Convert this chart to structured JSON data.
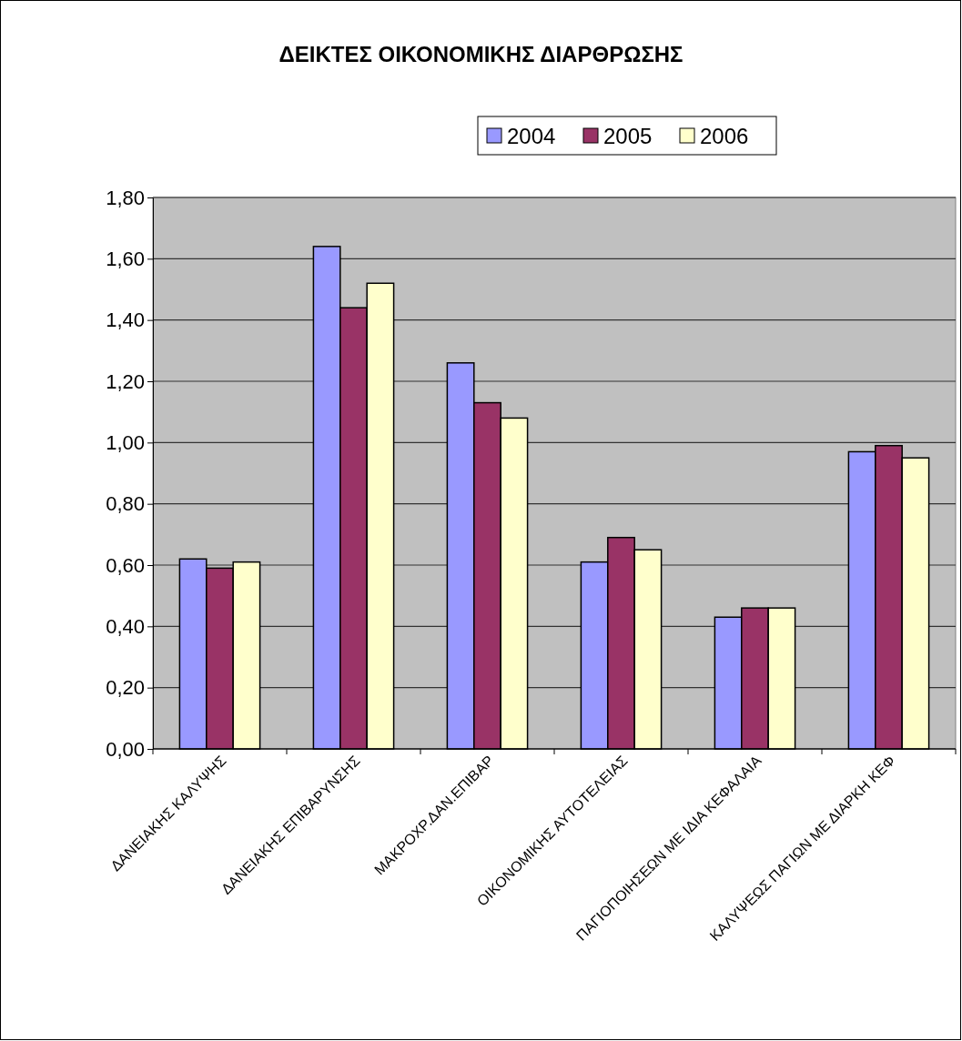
{
  "chart_data": {
    "type": "bar",
    "title": "ΔΕΙΚΤΕΣ ΟΙΚΟΝΟΜΙΚΗΣ ΔΙΑΡΘΡΩΣΗΣ",
    "categories": [
      "ΔΑΝΕΙΑΚΗΣ ΚΑΛΥΨΗΣ",
      "ΔΑΝΕΙΑΚΗΣ ΕΠΙΒΑΡΥΝΣΗΣ",
      "ΜΑΚΡΟΧΡ.ΔΑΝ.ΕΠΙΒΑΡ",
      "ΟΙΚΟΝΟΜΙΚΗΣ ΑΥΤΟΤΕΛΕΙΑΣ",
      "ΠΑΓΙΟΠΟΙΗΣΕΩΝ ΜΕ ΙΔΙΑ ΚΕΦΑΛΑΙΑ",
      "ΚΑΛΥΨΕΩΣ ΠΑΓΙΩΝ ΜΕ ΔΙΑΡΚΗ ΚΕΦ"
    ],
    "series": [
      {
        "name": "2004",
        "color": "#9999ff",
        "values": [
          0.62,
          1.64,
          1.26,
          0.61,
          0.43,
          0.97
        ]
      },
      {
        "name": "2005",
        "color": "#993366",
        "values": [
          0.59,
          1.44,
          1.13,
          0.69,
          0.46,
          0.99
        ]
      },
      {
        "name": "2006",
        "color": "#ffffcc",
        "values": [
          0.61,
          1.52,
          1.08,
          0.65,
          0.46,
          0.95
        ]
      }
    ],
    "ylim": [
      0,
      1.8
    ],
    "yticks": [
      {
        "value": 0,
        "label": "0,00"
      },
      {
        "value": 0.2,
        "label": "0,20"
      },
      {
        "value": 0.4,
        "label": "0,40"
      },
      {
        "value": 0.6,
        "label": "0,60"
      },
      {
        "value": 0.8,
        "label": "0,80"
      },
      {
        "value": 1,
        "label": "1,00"
      },
      {
        "value": 1.2,
        "label": "1,20"
      },
      {
        "value": 1.4,
        "label": "1,40"
      },
      {
        "value": 1.6,
        "label": "1,60"
      },
      {
        "value": 1.8,
        "label": "1,80"
      }
    ],
    "grid": "y",
    "legend": "top"
  }
}
